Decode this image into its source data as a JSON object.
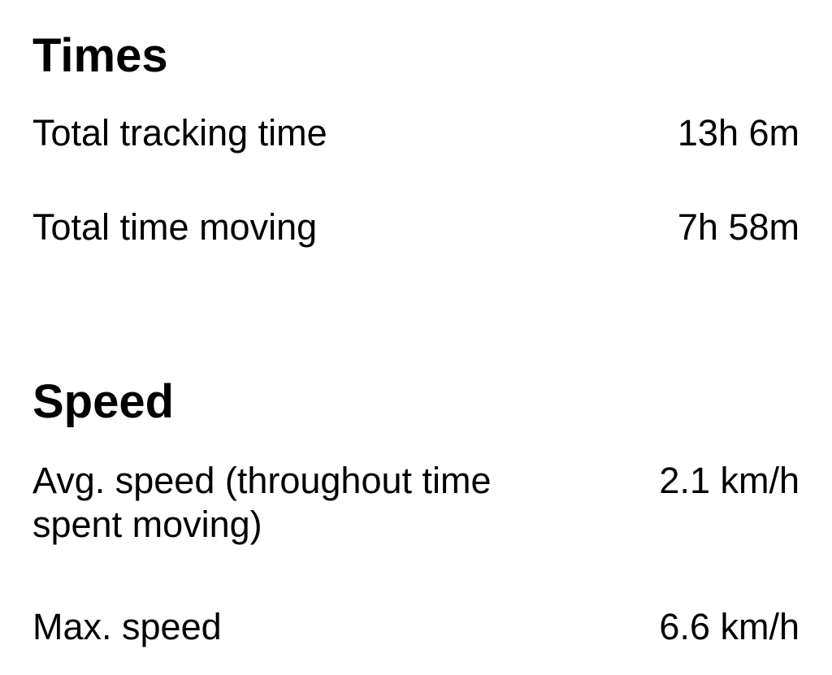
{
  "times": {
    "title": "Times",
    "rows": [
      {
        "label": "Total tracking time",
        "value": "13h 6m"
      },
      {
        "label": "Total time moving",
        "value": "7h 58m"
      }
    ]
  },
  "speed": {
    "title": "Speed",
    "rows": [
      {
        "label": "Avg. speed (throughout time spent moving)",
        "value": "2.1 km/h"
      },
      {
        "label": "Max. speed",
        "value": "6.6 km/h"
      }
    ]
  }
}
